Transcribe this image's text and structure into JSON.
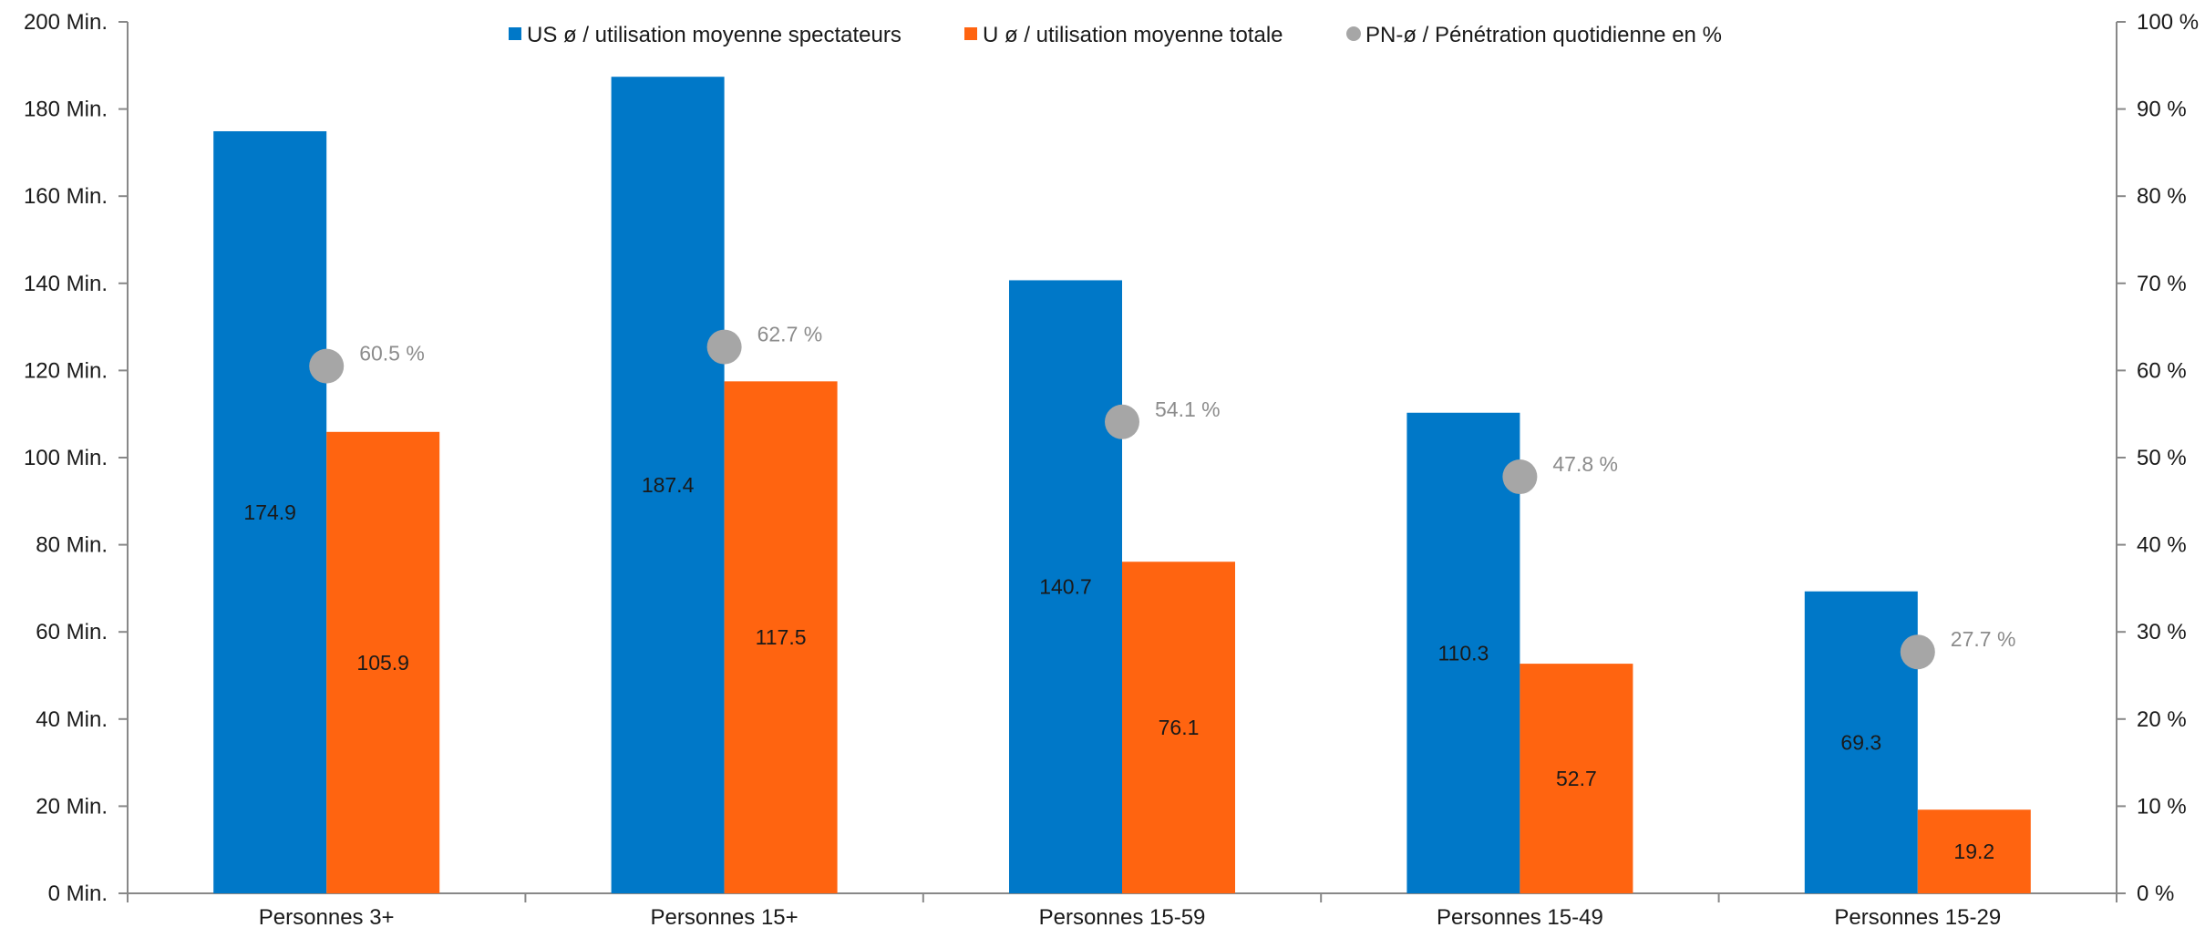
{
  "chart_data": {
    "type": "bar",
    "categories": [
      "Personnes 3+",
      "Personnes 15+",
      "Personnes 15-59",
      "Personnes 15-49",
      "Personnes 15-29"
    ],
    "series": [
      {
        "name": "US ø / utilisation moyenne spectateurs",
        "kind": "bar",
        "axis": "left",
        "color": "#0078c8",
        "values": [
          174.9,
          187.4,
          140.7,
          110.3,
          69.3
        ],
        "labels": [
          "174.9",
          "187.4",
          "140.7",
          "110.3",
          "69.3"
        ]
      },
      {
        "name": "U ø / utilisation moyenne totale",
        "kind": "bar",
        "axis": "left",
        "color": "#ff6410",
        "values": [
          105.9,
          117.5,
          76.1,
          52.7,
          19.2
        ],
        "labels": [
          "105.9",
          "117.5",
          "76.1",
          "52.7",
          "19.2"
        ]
      },
      {
        "name": "PN-ø / Pénétration quotidienne en %",
        "kind": "scatter",
        "axis": "right",
        "color": "#a6a6a6",
        "values": [
          60.5,
          62.7,
          54.1,
          47.8,
          27.7
        ],
        "labels": [
          "60.5 %",
          "62.7 %",
          "54.1 %",
          "47.8 %",
          "27.7 %"
        ]
      }
    ],
    "y_left": {
      "min": 0,
      "max": 200,
      "step": 20,
      "tick_labels": [
        "0 Min.",
        "20 Min.",
        "40 Min.",
        "60 Min.",
        "80 Min.",
        "100 Min.",
        "120 Min.",
        "140 Min.",
        "160 Min.",
        "180 Min.",
        "200 Min."
      ]
    },
    "y_right": {
      "min": 0,
      "max": 100,
      "step": 10,
      "tick_labels": [
        "0 %",
        "10 %",
        "20 %",
        "30 %",
        "40 %",
        "50 %",
        "60 %",
        "70 %",
        "80 %",
        "90 %",
        "100 %"
      ]
    },
    "grid": false,
    "legend_position": "top-center"
  }
}
